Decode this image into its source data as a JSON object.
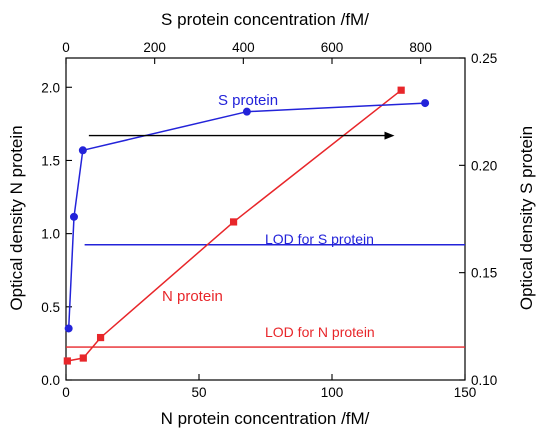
{
  "chart_data": {
    "type": "line",
    "axes": {
      "x_bottom": {
        "label": "N protein concentration /fM/",
        "range": [
          0,
          150
        ],
        "ticks": [
          0,
          50,
          100,
          150
        ]
      },
      "x_top": {
        "label": "S protein concentration /fM/",
        "range": [
          0,
          900
        ],
        "ticks": [
          0,
          200,
          400,
          600,
          800
        ]
      },
      "y_left": {
        "label": "Optical density N protein",
        "range": [
          0,
          2.2
        ],
        "ticks": [
          "0.0",
          "0.5",
          "1.0",
          "1.5",
          "2.0"
        ]
      },
      "y_right": {
        "label": "Optical density S protein",
        "range": [
          0.1,
          0.25
        ],
        "ticks": [
          "0.10",
          "0.15",
          "0.20",
          "0.25"
        ]
      }
    },
    "series": [
      {
        "name": "N protein",
        "color": "#e8262a",
        "marker": "square",
        "x_axis": "x_bottom",
        "y_axis": "y_left",
        "x": [
          0.5,
          6.5,
          13,
          63,
          126
        ],
        "y": [
          0.13,
          0.15,
          0.29,
          1.08,
          1.98
        ]
      },
      {
        "name": "S protein",
        "color": "#2323d9",
        "marker": "circle",
        "x_axis": "x_top",
        "y_axis": "y_right",
        "x": [
          6,
          18,
          38,
          408,
          810
        ],
        "y": [
          0.124,
          0.176,
          0.207,
          0.225,
          0.229
        ]
      }
    ],
    "reference_lines": [
      {
        "label": "LOD for S protein",
        "axis": "y_right",
        "value": 0.163,
        "from_x": 7,
        "color": "#2323d9"
      },
      {
        "label": "LOD for N protein",
        "axis": "y_left",
        "value": 0.225,
        "from_x": 0,
        "color": "#e8262a"
      }
    ],
    "annotations": [
      {
        "text": "S protein",
        "color": "#2323d9"
      },
      {
        "text": "N protein",
        "color": "#e8262a"
      }
    ],
    "arrow": {
      "from_x": 8.6,
      "to_x": 123.5,
      "y": 1.67,
      "direction": "right",
      "color": "#000000"
    },
    "grid": false,
    "legend": "none"
  }
}
